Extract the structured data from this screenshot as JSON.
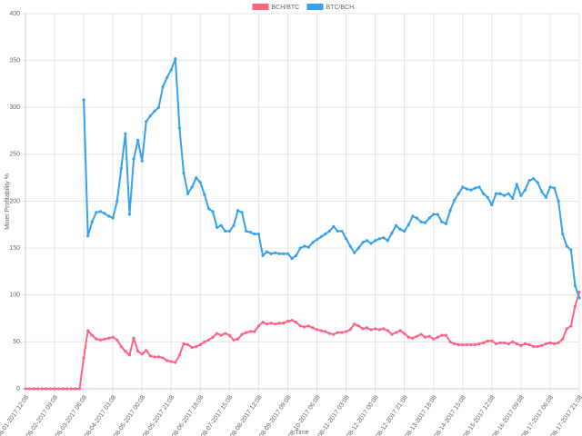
{
  "chart_data": {
    "type": "line",
    "x_label": "Time",
    "y_label": "Miner Profitability %",
    "legend": "top",
    "grid": true,
    "ylim": [
      0,
      400
    ],
    "yticks": [
      0,
      50,
      100,
      150,
      200,
      250,
      300,
      350,
      400
    ],
    "categories": [
      "08-01-2017 12:08",
      null,
      null,
      null,
      null,
      null,
      null,
      "08-02-2017 09:08",
      null,
      null,
      null,
      null,
      null,
      null,
      "08-03-2017 06:08",
      null,
      null,
      null,
      null,
      null,
      null,
      "08-04-2017 03:08",
      null,
      null,
      null,
      null,
      null,
      null,
      "08-05-2017 00:08",
      null,
      null,
      null,
      null,
      null,
      null,
      "08-05-2017 21:08",
      null,
      null,
      null,
      null,
      null,
      null,
      "08-06-2017 18:08",
      null,
      null,
      null,
      null,
      null,
      null,
      "08-07-2017 15:08",
      null,
      null,
      null,
      null,
      null,
      null,
      "08-08-2017 12:08",
      null,
      null,
      null,
      null,
      null,
      null,
      "08-09-2017 09:08",
      null,
      null,
      null,
      null,
      null,
      null,
      "08-10-2017 06:08",
      null,
      null,
      null,
      null,
      null,
      null,
      "08-11-2017 03:08",
      null,
      null,
      null,
      null,
      null,
      null,
      "08-12-2017 00:08",
      null,
      null,
      null,
      null,
      null,
      null,
      "08-12-2017 21:08",
      null,
      null,
      null,
      null,
      null,
      null,
      "08-13-2017 18:08",
      null,
      null,
      null,
      null,
      null,
      null,
      "08-14-2017 15:08",
      null,
      null,
      null,
      null,
      null,
      null,
      "08-15-2017 12:08",
      null,
      null,
      null,
      null,
      null,
      null,
      "08-16-2017 09:08",
      null,
      null,
      null,
      null,
      null,
      null,
      "08-17-2017 06:08",
      null,
      null,
      null,
      null,
      null,
      null,
      "08-17-2017 21:08"
    ],
    "series": [
      {
        "name": "BCH/BTC",
        "color": "#ff6384",
        "values": [
          0,
          0,
          0,
          0,
          0,
          0,
          0,
          0,
          0,
          0,
          0,
          0,
          0,
          0,
          33,
          62,
          57,
          53,
          52,
          53,
          54,
          55,
          52,
          45,
          40,
          36,
          54,
          40,
          37,
          41,
          35,
          34,
          34,
          33,
          30,
          29,
          28,
          36,
          48,
          47,
          44,
          45,
          47,
          50,
          52,
          55,
          59,
          57,
          59,
          57,
          52,
          53,
          58,
          60,
          61,
          61,
          67,
          71,
          69,
          70,
          69,
          70,
          70,
          72,
          73,
          71,
          67,
          66,
          67,
          65,
          63,
          62,
          61,
          59,
          58,
          60,
          60,
          61,
          63,
          69,
          67,
          64,
          65,
          63,
          64,
          63,
          64,
          62,
          58,
          60,
          62,
          59,
          55,
          54,
          56,
          58,
          55,
          56,
          53,
          55,
          57,
          57,
          50,
          48,
          47,
          47,
          47,
          47,
          47,
          48,
          49,
          51,
          51,
          48,
          49,
          49,
          48,
          50,
          48,
          46,
          48,
          47,
          45,
          45,
          46,
          48,
          49,
          48,
          49,
          53,
          64,
          67,
          88,
          103
        ]
      },
      {
        "name": "BTC/BCH",
        "color": "#36a2eb",
        "values": [
          null,
          null,
          null,
          null,
          null,
          null,
          null,
          null,
          null,
          null,
          null,
          null,
          null,
          null,
          308,
          163,
          178,
          188,
          189,
          187,
          184,
          182,
          200,
          235,
          272,
          186,
          245,
          265,
          243,
          285,
          291,
          296,
          300,
          322,
          332,
          340,
          352,
          278,
          230,
          208,
          215,
          225,
          220,
          207,
          192,
          189,
          172,
          174,
          168,
          168,
          174,
          190,
          188,
          168,
          167,
          165,
          165,
          142,
          146,
          144,
          145,
          144,
          144,
          144,
          139,
          142,
          150,
          152,
          151,
          156,
          159,
          162,
          165,
          168,
          173,
          168,
          168,
          160,
          152,
          145,
          150,
          156,
          158,
          155,
          158,
          160,
          161,
          158,
          166,
          174,
          170,
          168,
          175,
          184,
          182,
          178,
          177,
          182,
          186,
          186,
          178,
          176,
          190,
          201,
          208,
          215,
          213,
          212,
          214,
          215,
          208,
          204,
          196,
          208,
          208,
          206,
          208,
          203,
          218,
          206,
          212,
          222,
          224,
          220,
          210,
          204,
          215,
          214,
          200,
          165,
          152,
          148,
          110,
          97
        ]
      }
    ]
  }
}
